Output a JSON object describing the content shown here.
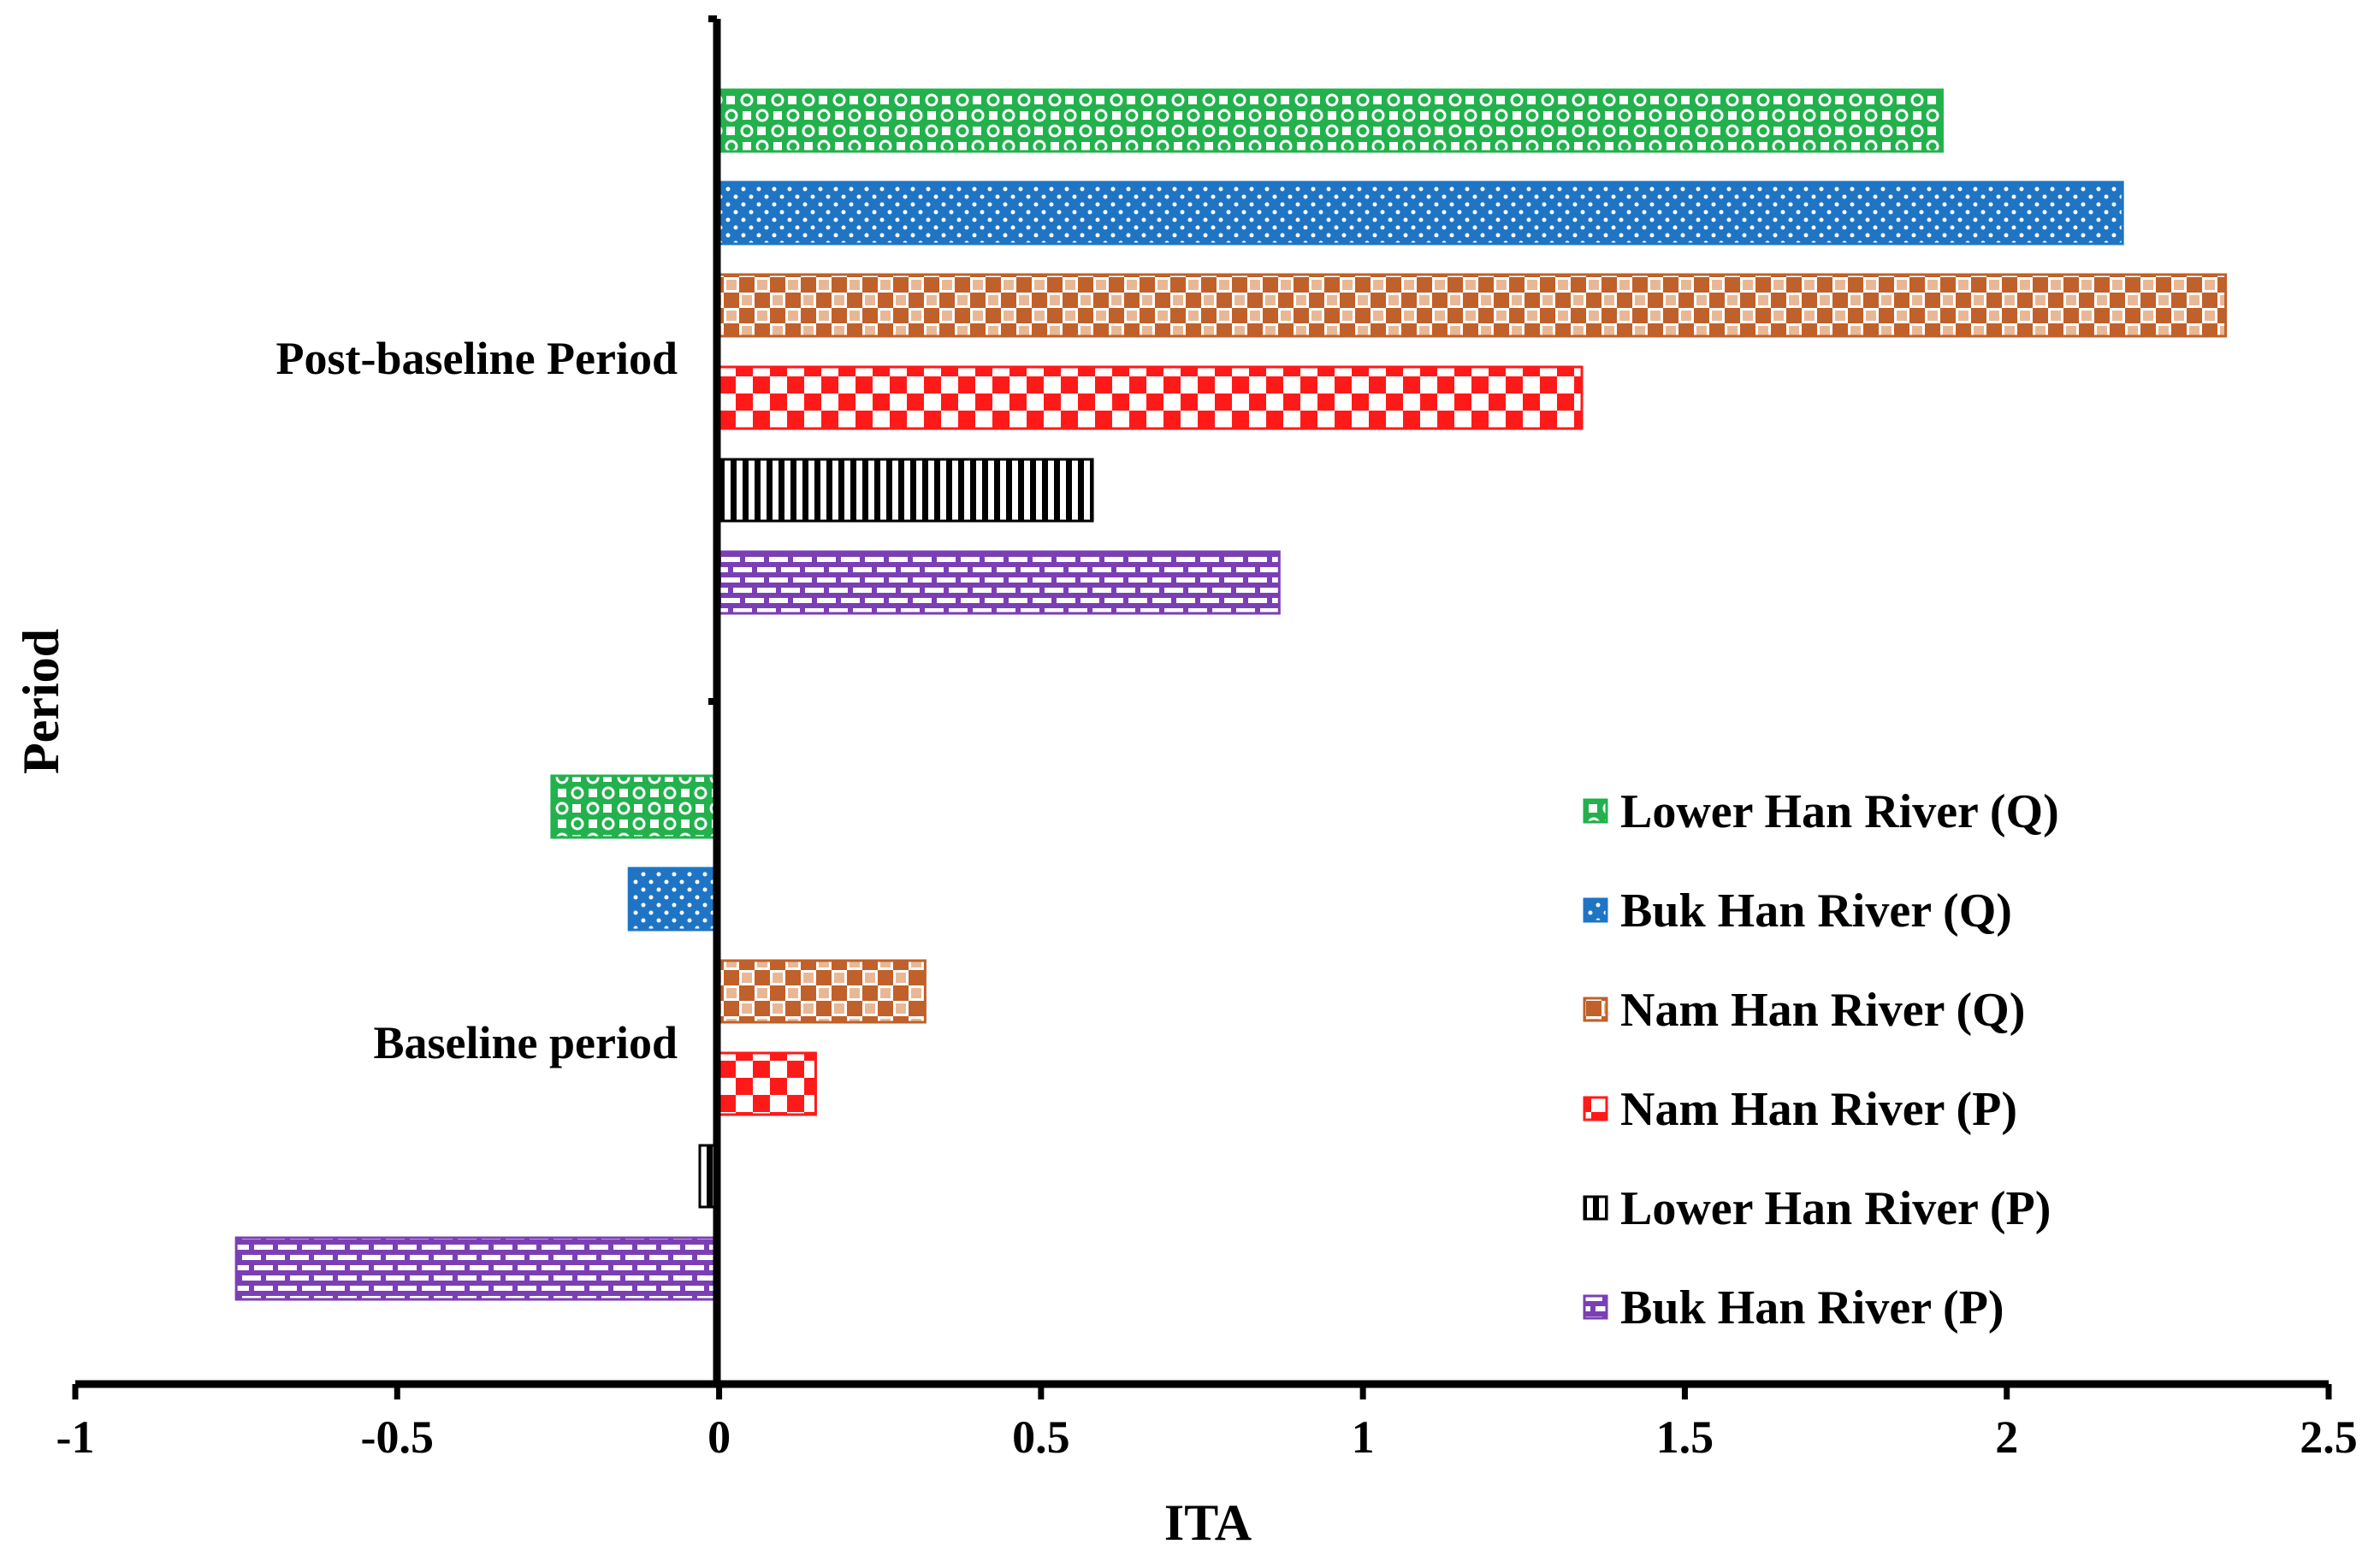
{
  "chart_data": {
    "type": "bar",
    "orientation": "horizontal",
    "xlabel": "ITA",
    "ylabel": "Period",
    "xlim": [
      -1,
      2.5
    ],
    "xticks": [
      -1,
      -0.5,
      0,
      0.5,
      1,
      1.5,
      2,
      2.5
    ],
    "xtick_labels": [
      "-1",
      "-0.5",
      "0",
      "0.5",
      "1",
      "1.5",
      "2",
      "2.5"
    ],
    "categories": [
      "Post-baseline Period",
      "Baseline period"
    ],
    "series": [
      {
        "name": "Lower Han River (Q)",
        "color": "#22b14c",
        "pattern": "circles",
        "values": [
          1.9,
          -0.26
        ]
      },
      {
        "name": "Buk Han River (Q)",
        "color": "#1f75c4",
        "pattern": "dots",
        "values": [
          2.18,
          -0.14
        ]
      },
      {
        "name": "Nam Han River (Q)",
        "color": "#c0602a",
        "pattern": "weave",
        "values": [
          2.34,
          0.32
        ]
      },
      {
        "name": "Nam Han River (P)",
        "color": "#ff1a1a",
        "pattern": "checker",
        "values": [
          1.34,
          0.15
        ]
      },
      {
        "name": "Lower Han River (P)",
        "color": "#000000",
        "pattern": "vstripes",
        "values": [
          0.58,
          -0.03
        ]
      },
      {
        "name": "Buk Han River (P)",
        "color": "#7b3fb5",
        "pattern": "bricks",
        "values": [
          0.87,
          -0.75
        ]
      }
    ],
    "legend_position": "bottom-right",
    "grid": false
  }
}
